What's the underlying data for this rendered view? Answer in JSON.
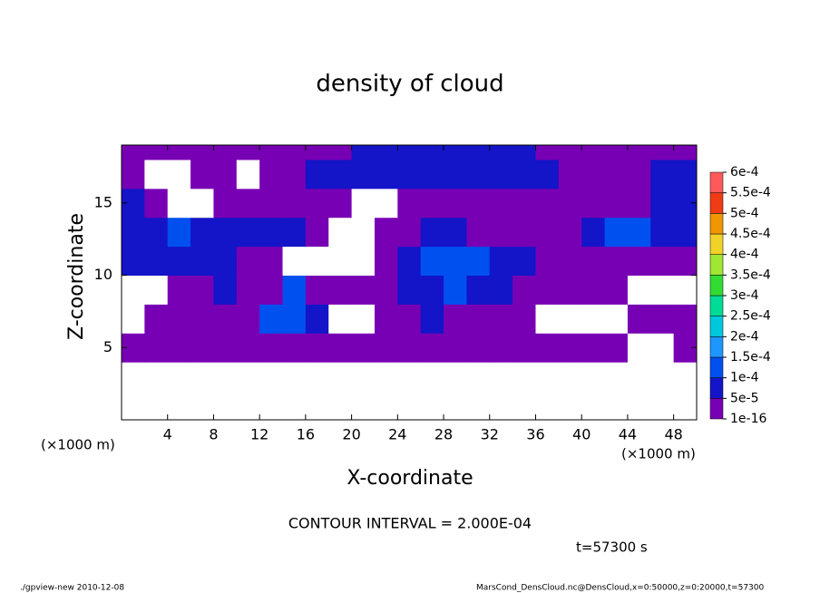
{
  "chart_data": {
    "type": "contour",
    "title": "density of cloud",
    "x_label": "X-coordinate",
    "y_label": "Z-coordinate",
    "x_unit": "(×1000 m)",
    "y_unit": "(×1000 m)",
    "contour_note": "CONTOUR INTERVAL = 2.000E-04",
    "time_note": "t=57300 s",
    "footer_left": "./gpview-new  2010-12-08",
    "footer_right": "MarsCond_DensCloud.nc@DensCloud,x=0:50000,z=0:20000,t=57300",
    "xlim": [
      0,
      50
    ],
    "ylim": [
      0,
      19
    ],
    "xticks": [
      4,
      8,
      12,
      16,
      20,
      24,
      28,
      32,
      36,
      40,
      44,
      48
    ],
    "yticks": [
      5,
      10,
      15
    ],
    "x": [
      1,
      3,
      5,
      7,
      9,
      11,
      13,
      15,
      17,
      19,
      21,
      23,
      25,
      27,
      29,
      31,
      33,
      35,
      37,
      39,
      41,
      43,
      45,
      47,
      49
    ],
    "y": [
      1,
      3,
      5,
      7,
      9,
      11,
      13,
      15,
      17,
      19
    ],
    "values": [
      [
        0,
        0,
        0,
        0,
        0,
        0,
        0,
        0,
        0,
        0,
        0,
        0,
        0,
        0,
        0,
        0,
        0,
        0,
        0,
        0,
        0,
        0,
        0,
        0,
        0
      ],
      [
        0,
        0,
        0,
        0,
        0,
        0,
        0,
        0,
        0,
        0,
        0,
        0,
        0,
        0,
        0,
        0,
        0,
        0,
        0,
        0,
        0,
        0,
        0,
        0,
        0
      ],
      [
        2e-05,
        2e-05,
        2e-05,
        2e-05,
        2e-05,
        2e-05,
        2e-05,
        2e-05,
        2e-05,
        2e-05,
        2e-05,
        2e-05,
        2e-05,
        2e-05,
        2e-05,
        2e-05,
        2e-05,
        2e-05,
        2e-05,
        2e-05,
        2e-05,
        2e-05,
        0,
        0,
        2e-05
      ],
      [
        0,
        2e-05,
        2e-05,
        2e-05,
        2e-05,
        2e-05,
        0.00012,
        0.00012,
        7e-05,
        0,
        0,
        2e-05,
        2e-05,
        7e-05,
        2e-05,
        2e-05,
        2e-05,
        2e-05,
        0,
        0,
        0,
        0,
        2e-05,
        2e-05,
        2e-05
      ],
      [
        0,
        0,
        2e-05,
        2e-05,
        7e-05,
        2e-05,
        2e-05,
        0.00012,
        2e-05,
        2e-05,
        2e-05,
        2e-05,
        7e-05,
        7e-05,
        0.00012,
        7e-05,
        7e-05,
        2e-05,
        2e-05,
        2e-05,
        2e-05,
        2e-05,
        0,
        0,
        0
      ],
      [
        7e-05,
        7e-05,
        7e-05,
        7e-05,
        7e-05,
        2e-05,
        2e-05,
        0,
        0,
        0,
        0,
        2e-05,
        7e-05,
        0.00012,
        0.00012,
        0.00012,
        7e-05,
        7e-05,
        2e-05,
        2e-05,
        2e-05,
        2e-05,
        2e-05,
        2e-05,
        2e-05
      ],
      [
        7e-05,
        7e-05,
        0.00012,
        7e-05,
        7e-05,
        7e-05,
        7e-05,
        7e-05,
        2e-05,
        0,
        0,
        2e-05,
        2e-05,
        7e-05,
        7e-05,
        2e-05,
        2e-05,
        2e-05,
        2e-05,
        2e-05,
        7e-05,
        0.00012,
        0.00012,
        7e-05,
        7e-05
      ],
      [
        7e-05,
        2e-05,
        0,
        0,
        2e-05,
        2e-05,
        2e-05,
        2e-05,
        2e-05,
        2e-05,
        0,
        0,
        2e-05,
        2e-05,
        2e-05,
        2e-05,
        2e-05,
        2e-05,
        2e-05,
        2e-05,
        2e-05,
        2e-05,
        2e-05,
        7e-05,
        7e-05
      ],
      [
        2e-05,
        0,
        0,
        2e-05,
        2e-05,
        0,
        2e-05,
        2e-05,
        7e-05,
        7e-05,
        7e-05,
        7e-05,
        7e-05,
        7e-05,
        7e-05,
        7e-05,
        7e-05,
        7e-05,
        7e-05,
        2e-05,
        2e-05,
        2e-05,
        2e-05,
        7e-05,
        7e-05
      ],
      [
        2e-05,
        2e-05,
        2e-05,
        2e-05,
        2e-05,
        2e-05,
        2e-05,
        2e-05,
        2e-05,
        2e-05,
        7e-05,
        7e-05,
        7e-05,
        7e-05,
        7e-05,
        7e-05,
        7e-05,
        7e-05,
        2e-05,
        2e-05,
        2e-05,
        2e-05,
        2e-05,
        2e-05,
        2e-05
      ]
    ],
    "levels": [
      {
        "value": 1e-16,
        "label": "1e-16"
      },
      {
        "value": 5e-05,
        "label": "5e-5"
      },
      {
        "value": 0.0001,
        "label": "1e-4"
      },
      {
        "value": 0.00015,
        "label": "1.5e-4"
      },
      {
        "value": 0.0002,
        "label": "2e-4"
      },
      {
        "value": 0.00025,
        "label": "2.5e-4"
      },
      {
        "value": 0.0003,
        "label": "3e-4"
      },
      {
        "value": 0.00035,
        "label": "3.5e-4"
      },
      {
        "value": 0.0004,
        "label": "4e-4"
      },
      {
        "value": 0.00045,
        "label": "4.5e-4"
      },
      {
        "value": 0.0005,
        "label": "5e-4"
      },
      {
        "value": 0.00055,
        "label": "5.5e-4"
      },
      {
        "value": 0.0006,
        "label": "6e-4"
      }
    ],
    "colors": [
      "#7800b4",
      "#1414c8",
      "#0050f0",
      "#1e96ff",
      "#00c8dc",
      "#00dc96",
      "#32dc32",
      "#a0e632",
      "#f0d228",
      "#f09600",
      "#f03c14",
      "#ff5a5a",
      "#ff9a9a"
    ],
    "below_color": "#ffffff"
  }
}
